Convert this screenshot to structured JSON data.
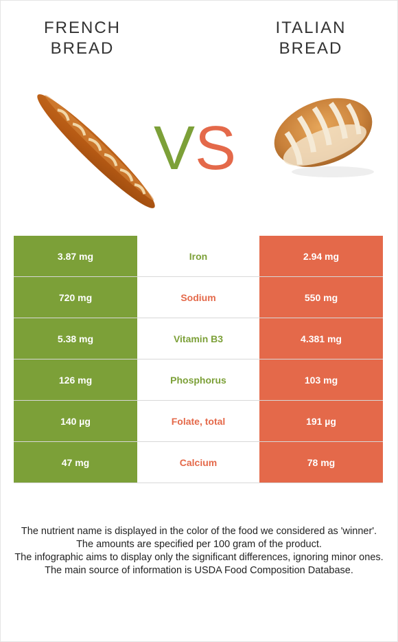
{
  "foods": {
    "left": {
      "title_line1": "FRENCH",
      "title_line2": "BREAD",
      "color": "#7ca038"
    },
    "right": {
      "title_line1": "ITALIAN",
      "title_line2": "BREAD",
      "color": "#e4694a"
    }
  },
  "vs": {
    "v": "V",
    "s": "S"
  },
  "rows": [
    {
      "left": "3.87 mg",
      "nutrient": "Iron",
      "winner": "left",
      "right": "2.94 mg"
    },
    {
      "left": "720 mg",
      "nutrient": "Sodium",
      "winner": "right",
      "right": "550 mg"
    },
    {
      "left": "5.38 mg",
      "nutrient": "Vitamin B3",
      "winner": "left",
      "right": "4.381 mg"
    },
    {
      "left": "126 mg",
      "nutrient": "Phosphorus",
      "winner": "left",
      "right": "103 mg"
    },
    {
      "left": "140 µg",
      "nutrient": "Folate, total",
      "winner": "right",
      "right": "191 µg"
    },
    {
      "left": "47 mg",
      "nutrient": "Calcium",
      "winner": "right",
      "right": "78 mg"
    }
  ],
  "notes": [
    "The nutrient name is displayed in the color of the food we considered as 'winner'.",
    "The amounts are specified per 100 gram of the product.",
    "The infographic aims to display only the significant differences, ignoring minor ones.",
    "The main source of information is USDA Food Composition Database."
  ]
}
